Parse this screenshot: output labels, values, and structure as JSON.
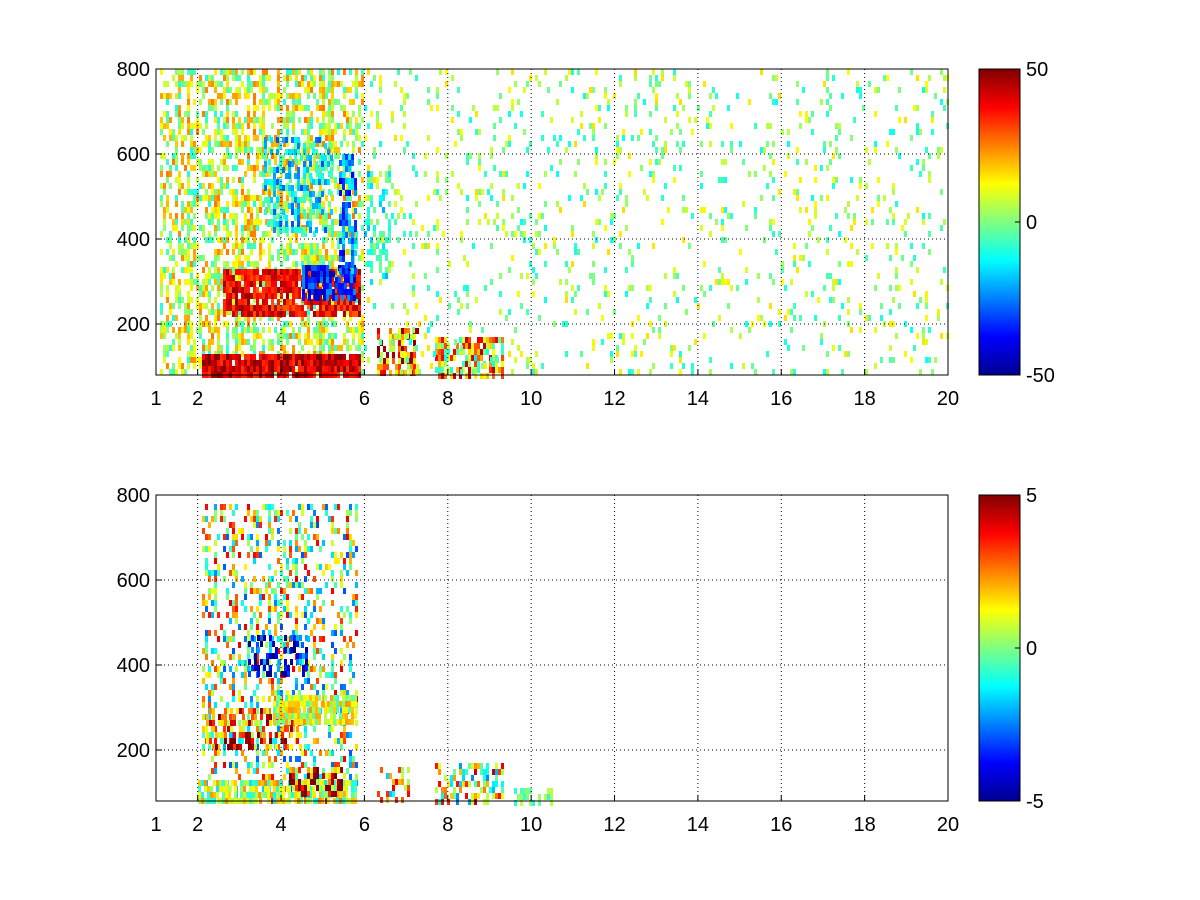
{
  "chart_data": [
    {
      "type": "heatmap",
      "colormap": "jet",
      "xlim": [
        1,
        20
      ],
      "ylim": [
        80,
        800
      ],
      "x_ticks": [
        1,
        2,
        4,
        6,
        8,
        10,
        12,
        14,
        16,
        18,
        20
      ],
      "x_tick_labels": [
        "1",
        "2",
        "4",
        "6",
        "8",
        "10",
        "12",
        "14",
        "16",
        "18",
        "20"
      ],
      "y_ticks": [
        200,
        400,
        600,
        800
      ],
      "y_tick_labels": [
        "200",
        "400",
        "600",
        "800"
      ],
      "grid": "dotted",
      "background": "#ffffff",
      "colorbar": {
        "range": [
          -50,
          50
        ],
        "ticks": [
          50,
          0,
          -50
        ],
        "tick_labels": [
          "50",
          "0",
          "-50"
        ],
        "placement": "right"
      },
      "features": [
        {
          "x": [
            1.1,
            6
          ],
          "y": [
            80,
            800
          ],
          "level": 8,
          "density": 0.45,
          "jitter": 18
        },
        {
          "x": [
            2.6,
            5.9
          ],
          "y": [
            220,
            330
          ],
          "level": 38,
          "density": 0.85,
          "jitter": 10
        },
        {
          "x": [
            4.5,
            5.8
          ],
          "y": [
            260,
            340
          ],
          "level": -35,
          "density": 0.8,
          "jitter": 12
        },
        {
          "x": [
            5.4,
            5.8
          ],
          "y": [
            330,
            600
          ],
          "level": -25,
          "density": 0.6,
          "jitter": 15
        },
        {
          "x": [
            2.1,
            5.9
          ],
          "y": [
            80,
            130
          ],
          "level": 42,
          "density": 0.9,
          "jitter": 10
        },
        {
          "x": [
            3.6,
            5.2
          ],
          "y": [
            420,
            640
          ],
          "level": -15,
          "density": 0.45,
          "jitter": 15
        },
        {
          "x": [
            6,
            6.6
          ],
          "y": [
            300,
            560
          ],
          "level": -10,
          "density": 0.35,
          "jitter": 12
        },
        {
          "x": [
            6.3,
            7.3
          ],
          "y": [
            80,
            190
          ],
          "level": 28,
          "density": 0.6,
          "jitter": 25
        },
        {
          "x": [
            7.7,
            9.3
          ],
          "y": [
            80,
            170
          ],
          "level": 15,
          "density": 0.6,
          "jitter": 30
        },
        {
          "x": [
            6,
            20
          ],
          "y": [
            80,
            800
          ],
          "level": 2,
          "density": 0.09,
          "jitter": 14
        }
      ]
    },
    {
      "type": "heatmap",
      "colormap": "jet",
      "xlim": [
        1,
        20
      ],
      "ylim": [
        80,
        800
      ],
      "x_ticks": [
        1,
        2,
        4,
        6,
        8,
        10,
        12,
        14,
        16,
        18,
        20
      ],
      "x_tick_labels": [
        "1",
        "2",
        "4",
        "6",
        "8",
        "10",
        "12",
        "14",
        "16",
        "18",
        "20"
      ],
      "y_ticks": [
        200,
        400,
        600,
        800
      ],
      "y_tick_labels": [
        "200",
        "400",
        "600",
        "800"
      ],
      "grid": "dotted",
      "background": "#ffffff",
      "colorbar": {
        "range": [
          -5,
          5
        ],
        "ticks": [
          5,
          0,
          -5
        ],
        "tick_labels": [
          "5",
          "0",
          "-5"
        ],
        "placement": "right"
      },
      "features": [
        {
          "x": [
            2.1,
            5.8
          ],
          "y": [
            80,
            780
          ],
          "level": 0.5,
          "density": 0.3,
          "jitter": 3.5
        },
        {
          "x": [
            2.2,
            4.5
          ],
          "y": [
            200,
            300
          ],
          "level": 3,
          "density": 0.5,
          "jitter": 2.5
        },
        {
          "x": [
            3.8,
            5.8
          ],
          "y": [
            260,
            330
          ],
          "level": 0.8,
          "density": 0.8,
          "jitter": 1.5
        },
        {
          "x": [
            2,
            5.8
          ],
          "y": [
            80,
            130
          ],
          "level": 0.5,
          "density": 0.75,
          "jitter": 2
        },
        {
          "x": [
            4.2,
            5.5
          ],
          "y": [
            100,
            160
          ],
          "level": 3.5,
          "density": 0.5,
          "jitter": 3
        },
        {
          "x": [
            3.2,
            4.6
          ],
          "y": [
            380,
            470
          ],
          "level": -3.5,
          "density": 0.35,
          "jitter": 2
        },
        {
          "x": [
            6.3,
            7.1
          ],
          "y": [
            80,
            160
          ],
          "level": 1,
          "density": 0.35,
          "jitter": 3
        },
        {
          "x": [
            7.7,
            9.3
          ],
          "y": [
            80,
            170
          ],
          "level": 1,
          "density": 0.45,
          "jitter": 3.5
        },
        {
          "x": [
            9.6,
            10.6
          ],
          "y": [
            80,
            110
          ],
          "level": 0,
          "density": 0.3,
          "jitter": 1
        }
      ]
    }
  ]
}
